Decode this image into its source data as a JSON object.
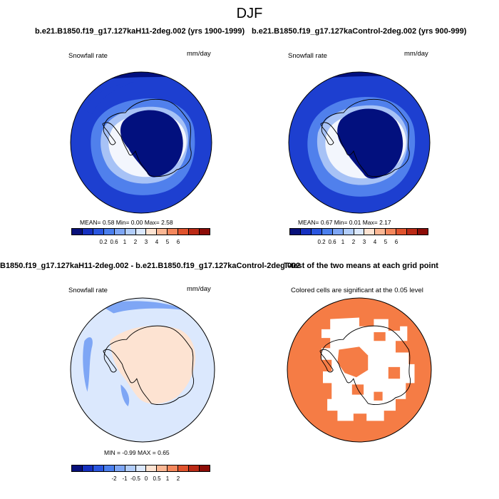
{
  "main_title": "DJF",
  "panel1": {
    "case_title": "b.e21.B1850.f19_g17.127kaH11-2deg.002 (yrs 1900-1999)",
    "var_label": "Snowfall rate",
    "units": "mm/day",
    "stats": "MEAN=   0.58   Min=   0.00   Max=   2.58"
  },
  "panel2": {
    "case_title": "b.e21.B1850.f19_g17.127kaControl-2deg.002 (yrs 900-999)",
    "var_label": "Snowfall rate",
    "units": "mm/day",
    "stats": "MEAN=   0.67   Min=   0.01   Max=   2.17"
  },
  "panel3": {
    "case_title": "B1850.f19_g17.127kaH11-2deg.002 - b.e21.B1850.f19_g17.127kaControl-2deg.002",
    "var_label": "Snowfall rate",
    "units": "mm/day",
    "stats": "MIN =  -0.99 MAX =   0.65"
  },
  "panel4": {
    "case_title": "T-test of the two means at each grid point",
    "subtitle": "Colored cells are significant at the 0.05 level"
  },
  "colorbar_abs": {
    "colors": [
      "#08107a",
      "#1530c0",
      "#2a56e0",
      "#4b7fee",
      "#7ea6f5",
      "#b2cdfa",
      "#dbe8fd",
      "#fde3d2",
      "#fbb794",
      "#f4875c",
      "#e0532d",
      "#bb2a16",
      "#8c0c07"
    ],
    "ticks": [
      "0.2",
      "0.6",
      "1",
      "2",
      "3",
      "4",
      "5",
      "6"
    ]
  },
  "colorbar_diff": {
    "colors": [
      "#08107a",
      "#1530c0",
      "#2a56e0",
      "#4b7fee",
      "#7ea6f5",
      "#b2cdfa",
      "#dbe8fd",
      "#fde3d2",
      "#fbb794",
      "#f4875c",
      "#e0532d",
      "#bb2a16",
      "#8c0c07"
    ],
    "ticks": [
      "-2",
      "-1",
      "-0.5",
      "0",
      "0.5",
      "1",
      "2"
    ]
  },
  "map_colors": {
    "dark": "#02107e",
    "mid": "#1d3fd0",
    "light": "#5080ec",
    "pale": "#a7c2f6",
    "white": "#f3f6fd",
    "diff_bg": "#dbe8fd",
    "diff_pos": "#fde3d2",
    "diff_neg": "#7ea6f5",
    "signif": "#f57c45"
  }
}
